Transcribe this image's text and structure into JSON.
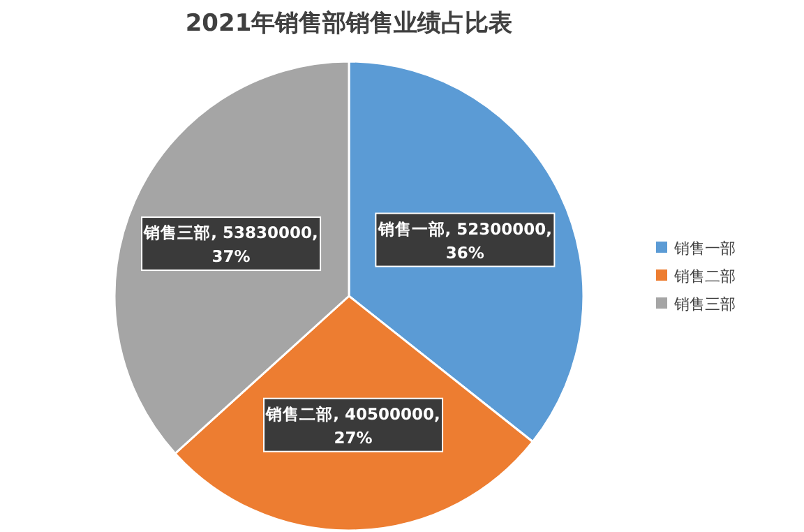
{
  "chart_data": {
    "type": "pie",
    "title": "2021年销售部销售业绩占比表",
    "categories": [
      "销售一部",
      "销售二部",
      "销售三部"
    ],
    "values": [
      52300000,
      40500000,
      53830000
    ],
    "colors": [
      "#5b9bd5",
      "#ed7d31",
      "#a5a5a5"
    ],
    "value_labels": [
      "销售一部, 52300000, 36%",
      "销售二部, 40500000, 27%",
      "销售三部, 53830000, 37%"
    ],
    "legend": "right"
  }
}
